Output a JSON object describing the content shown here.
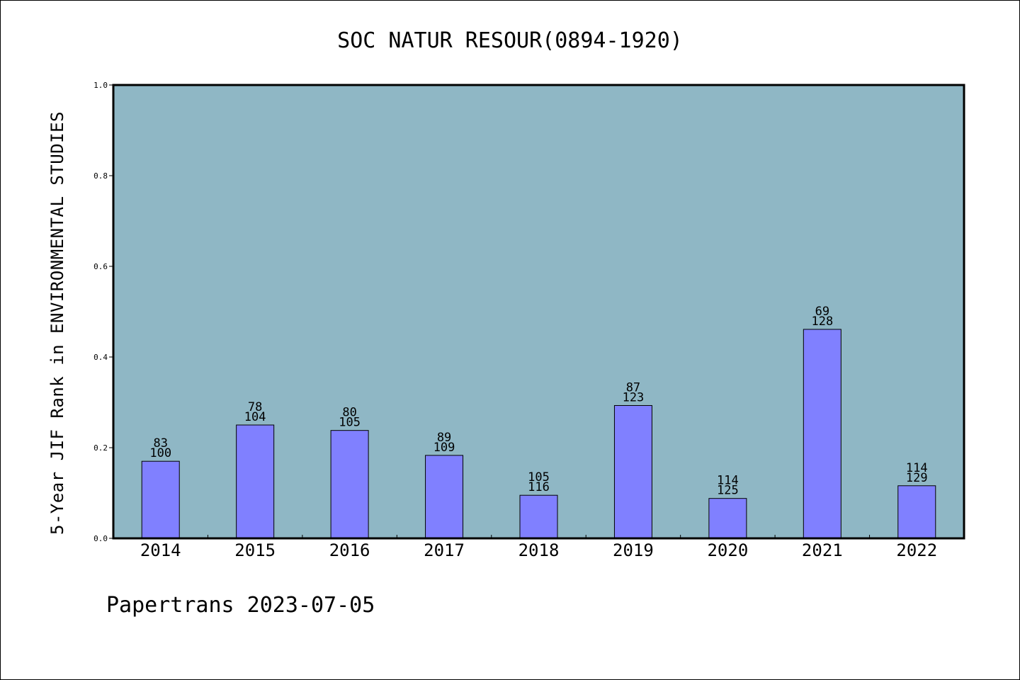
{
  "chart_data": {
    "type": "bar",
    "title": "SOC NATUR RESOUR(0894-1920)",
    "xlabel": "",
    "ylabel": "5-Year JIF Rank in ENVIRONMENTAL STUDIES",
    "ylim": [
      0.0,
      1.0
    ],
    "yticks": [
      "0.0",
      "0.2",
      "0.4",
      "0.6",
      "0.8",
      "1.0"
    ],
    "grid": false,
    "categories": [
      "2014",
      "2015",
      "2016",
      "2017",
      "2018",
      "2019",
      "2020",
      "2021",
      "2022"
    ],
    "values": [
      0.17,
      0.25,
      0.238,
      0.183,
      0.095,
      0.293,
      0.088,
      0.461,
      0.116
    ],
    "bar_labels": [
      {
        "rank": "83",
        "total": "100"
      },
      {
        "rank": "78",
        "total": "104"
      },
      {
        "rank": "80",
        "total": "105"
      },
      {
        "rank": "89",
        "total": "109"
      },
      {
        "rank": "105",
        "total": "116"
      },
      {
        "rank": "87",
        "total": "123"
      },
      {
        "rank": "114",
        "total": "125"
      },
      {
        "rank": "69",
        "total": "128"
      },
      {
        "rank": "114",
        "total": "129"
      }
    ],
    "colors": {
      "plot_background": "#8fb7c5",
      "bar_fill": "#8080ff",
      "bar_edge": "#000000"
    }
  },
  "footer": "Papertrans 2023-07-05"
}
